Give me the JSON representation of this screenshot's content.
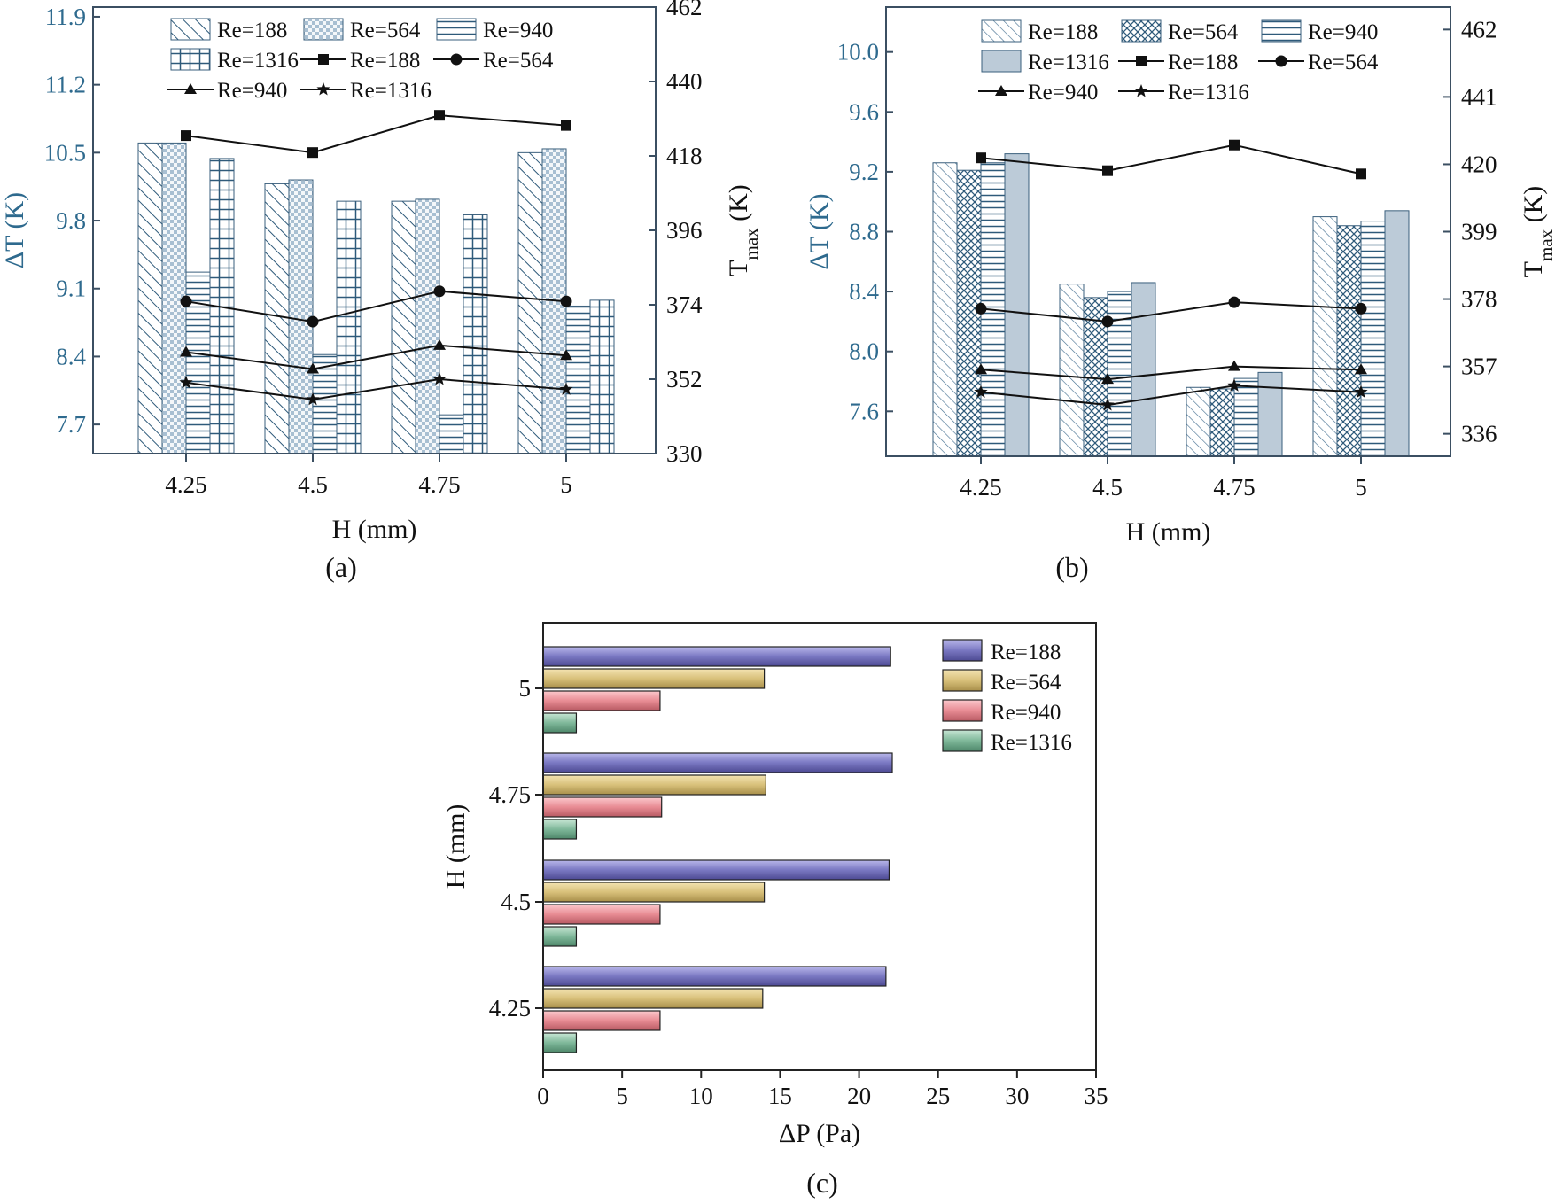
{
  "figure": {
    "panel_a_label": "(a)",
    "panel_b_label": "(b)",
    "panel_c_label": "(c)"
  },
  "chart_data": [
    {
      "id": "a",
      "type": "bar",
      "categories": [
        "4.25",
        "4.5",
        "4.75",
        "5"
      ],
      "xlabel": "H (mm)",
      "ylabel": "ΔT (K)",
      "ylabel_right": "T",
      "ylabel_right_sub": "max",
      "ylabel_right_unit": " (K)",
      "ylim": [
        7.4,
        12.0
      ],
      "yticks": [
        "7.7",
        "8.4",
        "9.1",
        "9.8",
        "10.5",
        "11.2",
        "11.9"
      ],
      "ylim_right": [
        330,
        462
      ],
      "yticks_right": [
        "330",
        "352",
        "374",
        "396",
        "418",
        "440",
        "462"
      ],
      "series": [
        {
          "name": "Re=188",
          "kind": "bar",
          "values": [
            10.6,
            10.18,
            10.0,
            10.5
          ]
        },
        {
          "name": "Re=564",
          "kind": "bar",
          "values": [
            10.6,
            10.22,
            10.02,
            10.54
          ]
        },
        {
          "name": "Re=940",
          "kind": "bar",
          "values": [
            9.27,
            8.42,
            7.8,
            8.92
          ]
        },
        {
          "name": "Re=1316",
          "kind": "bar",
          "values": [
            10.44,
            10.0,
            9.86,
            8.98
          ]
        }
      ],
      "line_series": [
        {
          "name": "Re=188",
          "marker": "square",
          "values": [
            424,
            419,
            430,
            427
          ]
        },
        {
          "name": "Re=564",
          "marker": "circle",
          "values": [
            375,
            369,
            378,
            375
          ]
        },
        {
          "name": "Re=940",
          "marker": "triangle",
          "values": [
            360,
            355,
            362,
            359
          ]
        },
        {
          "name": "Re=1316",
          "marker": "star",
          "values": [
            351,
            346,
            352,
            349
          ]
        }
      ],
      "legend": [
        "Re=188",
        "Re=564",
        "Re=940",
        "Re=1316",
        "Re=188",
        "Re=564",
        "Re=940",
        "Re=1316"
      ]
    },
    {
      "id": "b",
      "type": "bar",
      "categories": [
        "4.25",
        "4.5",
        "4.75",
        "5"
      ],
      "xlabel": "H (mm)",
      "ylabel": "ΔT (K)",
      "ylabel_right": "T",
      "ylabel_right_sub": "max",
      "ylabel_right_unit": " (K)",
      "ylim": [
        7.3,
        10.3
      ],
      "yticks": [
        "7.6",
        "8.0",
        "8.4",
        "8.8",
        "9.2",
        "9.6",
        "10.0"
      ],
      "ylim_right": [
        329,
        469
      ],
      "yticks_right": [
        "336",
        "357",
        "378",
        "399",
        "420",
        "441",
        "462"
      ],
      "series": [
        {
          "name": "Re=188",
          "kind": "bar",
          "values": [
            9.26,
            8.45,
            7.76,
            8.9
          ]
        },
        {
          "name": "Re=564",
          "kind": "bar",
          "values": [
            9.21,
            8.36,
            7.75,
            8.84
          ]
        },
        {
          "name": "Re=940",
          "kind": "bar",
          "values": [
            9.26,
            8.4,
            7.82,
            8.87
          ]
        },
        {
          "name": "Re=1316",
          "kind": "bar",
          "values": [
            9.32,
            8.46,
            7.86,
            8.94
          ]
        }
      ],
      "line_series": [
        {
          "name": "Re=188",
          "marker": "square",
          "values": [
            422,
            418,
            426,
            417
          ]
        },
        {
          "name": "Re=564",
          "marker": "circle",
          "values": [
            375,
            371,
            377,
            375
          ]
        },
        {
          "name": "Re=940",
          "marker": "triangle",
          "values": [
            356,
            353,
            357,
            356
          ]
        },
        {
          "name": "Re=1316",
          "marker": "star",
          "values": [
            349,
            345,
            351,
            349
          ]
        }
      ],
      "legend": [
        "Re=188",
        "Re=564",
        "Re=940",
        "Re=1316",
        "Re=188",
        "Re=564",
        "Re=940",
        "Re=1316"
      ]
    },
    {
      "id": "c",
      "type": "bar",
      "orientation": "horizontal",
      "categories": [
        "4.25",
        "4.5",
        "4.75",
        "5"
      ],
      "xlabel": "ΔP (Pa)",
      "ylabel": "H (mm)",
      "xlim": [
        0,
        35
      ],
      "xticks": [
        "0",
        "5",
        "10",
        "15",
        "20",
        "25",
        "30",
        "35"
      ],
      "series": [
        {
          "name": "Re=188",
          "values": [
            21.7,
            21.9,
            22.1,
            22.0
          ]
        },
        {
          "name": "Re=564",
          "values": [
            13.9,
            14.0,
            14.1,
            14.0
          ]
        },
        {
          "name": "Re=940",
          "values": [
            7.4,
            7.4,
            7.5,
            7.4
          ]
        },
        {
          "name": "Re=1316",
          "values": [
            2.1,
            2.1,
            2.1,
            2.1
          ]
        }
      ],
      "legend": [
        "Re=188",
        "Re=564",
        "Re=940",
        "Re=1316"
      ],
      "colors": [
        "#7a78c2",
        "#d8c07a",
        "#e88c94",
        "#7fb89a"
      ]
    }
  ]
}
